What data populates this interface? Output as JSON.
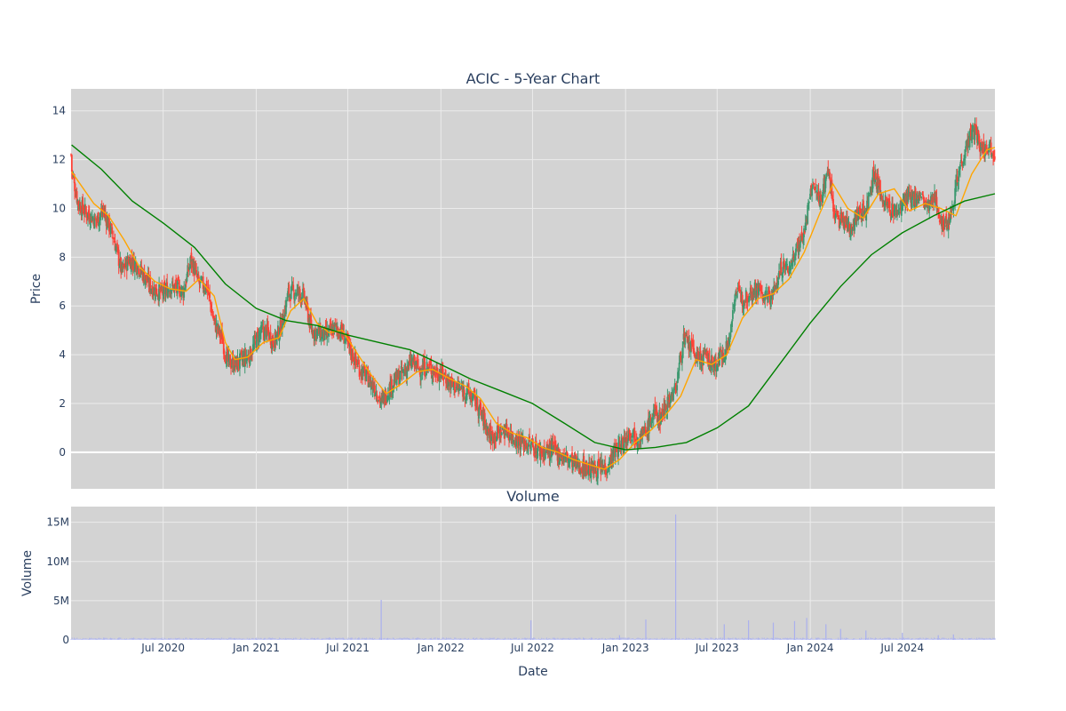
{
  "chart_data": [
    {
      "type": "candlestick",
      "title": "ACIC - 5-Year Chart",
      "ylabel": "Price",
      "ylim": [
        -1.5,
        14.9
      ],
      "yticks": [
        0,
        2,
        4,
        6,
        8,
        10,
        12,
        14
      ],
      "xlim": [
        "2020-01-01",
        "2024-12-31"
      ],
      "grid": true,
      "colors": {
        "up": "#3d9970",
        "down": "#ff4136",
        "ma_short": "#ffa500",
        "ma_long": "#008000",
        "background": "#d3d3d3",
        "grid": "#ebebeb"
      },
      "series": [
        {
          "kind": "close",
          "points": [
            [
              "2020-01-02",
              11.6
            ],
            [
              "2020-01-15",
              10.2
            ],
            [
              "2020-02-01",
              9.8
            ],
            [
              "2020-02-20",
              9.5
            ],
            [
              "2020-03-05",
              9.9
            ],
            [
              "2020-03-25",
              8.8
            ],
            [
              "2020-04-10",
              7.4
            ],
            [
              "2020-04-25",
              7.9
            ],
            [
              "2020-05-10",
              7.7
            ],
            [
              "2020-05-25",
              7.2
            ],
            [
              "2020-06-10",
              6.7
            ],
            [
              "2020-06-30",
              6.5
            ],
            [
              "2020-07-15",
              6.8
            ],
            [
              "2020-07-31",
              6.7
            ],
            [
              "2020-08-10",
              6.6
            ],
            [
              "2020-08-25",
              7.9
            ],
            [
              "2020-09-10",
              6.9
            ],
            [
              "2020-09-25",
              6.8
            ],
            [
              "2020-10-10",
              5.3
            ],
            [
              "2020-10-25",
              4.7
            ],
            [
              "2020-11-05",
              3.7
            ],
            [
              "2020-11-20",
              3.6
            ],
            [
              "2020-12-05",
              3.8
            ],
            [
              "2020-12-20",
              4.0
            ],
            [
              "2021-01-05",
              4.8
            ],
            [
              "2021-01-20",
              5.0
            ],
            [
              "2021-02-05",
              4.5
            ],
            [
              "2021-02-20",
              5.2
            ],
            [
              "2021-03-05",
              6.5
            ],
            [
              "2021-03-20",
              6.6
            ],
            [
              "2021-04-05",
              6.4
            ],
            [
              "2021-04-20",
              5.0
            ],
            [
              "2021-05-05",
              4.9
            ],
            [
              "2021-05-20",
              4.8
            ],
            [
              "2021-06-05",
              5.1
            ],
            [
              "2021-06-20",
              4.9
            ],
            [
              "2021-07-05",
              4.2
            ],
            [
              "2021-07-25",
              3.4
            ],
            [
              "2021-08-10",
              3.0
            ],
            [
              "2021-08-25",
              2.6
            ],
            [
              "2021-09-05",
              2.0
            ],
            [
              "2021-09-20",
              2.6
            ],
            [
              "2021-10-05",
              3.0
            ],
            [
              "2021-10-20",
              3.3
            ],
            [
              "2021-11-05",
              3.7
            ],
            [
              "2021-11-20",
              3.4
            ],
            [
              "2021-12-05",
              3.5
            ],
            [
              "2021-12-20",
              3.3
            ],
            [
              "2022-01-05",
              3.2
            ],
            [
              "2022-01-20",
              2.8
            ],
            [
              "2022-02-05",
              2.6
            ],
            [
              "2022-02-20",
              2.5
            ],
            [
              "2022-03-10",
              2.1
            ],
            [
              "2022-03-25",
              1.4
            ],
            [
              "2022-04-10",
              0.6
            ],
            [
              "2022-04-25",
              0.8
            ],
            [
              "2022-05-10",
              0.9
            ],
            [
              "2022-05-25",
              0.6
            ],
            [
              "2022-06-10",
              0.4
            ],
            [
              "2022-06-25",
              0.3
            ],
            [
              "2022-07-10",
              0.1
            ],
            [
              "2022-07-25",
              0.0
            ],
            [
              "2022-08-10",
              0.1
            ],
            [
              "2022-08-25",
              -0.1
            ],
            [
              "2022-09-10",
              -0.3
            ],
            [
              "2022-09-25",
              -0.5
            ],
            [
              "2022-10-10",
              -0.6
            ],
            [
              "2022-10-25",
              -0.7
            ],
            [
              "2022-11-10",
              -0.7
            ],
            [
              "2022-11-25",
              -0.6
            ],
            [
              "2022-12-10",
              0.0
            ],
            [
              "2022-12-25",
              0.3
            ],
            [
              "2023-01-10",
              0.9
            ],
            [
              "2023-01-25",
              0.6
            ],
            [
              "2023-02-10",
              0.8
            ],
            [
              "2023-02-25",
              1.6
            ],
            [
              "2023-03-10",
              1.4
            ],
            [
              "2023-03-25",
              2.1
            ],
            [
              "2023-04-10",
              2.6
            ],
            [
              "2023-04-25",
              4.6
            ],
            [
              "2023-05-10",
              4.3
            ],
            [
              "2023-05-25",
              3.8
            ],
            [
              "2023-06-10",
              3.9
            ],
            [
              "2023-06-25",
              3.5
            ],
            [
              "2023-07-10",
              4.0
            ],
            [
              "2023-07-25",
              4.5
            ],
            [
              "2023-08-05",
              6.6
            ],
            [
              "2023-08-20",
              6.3
            ],
            [
              "2023-09-05",
              6.6
            ],
            [
              "2023-09-20",
              6.7
            ],
            [
              "2023-10-05",
              6.3
            ],
            [
              "2023-10-20",
              6.5
            ],
            [
              "2023-11-05",
              7.6
            ],
            [
              "2023-11-20",
              7.5
            ],
            [
              "2023-12-05",
              8.4
            ],
            [
              "2023-12-20",
              9.0
            ],
            [
              "2024-01-05",
              11.0
            ],
            [
              "2024-01-20",
              10.3
            ],
            [
              "2024-02-05",
              11.6
            ],
            [
              "2024-02-20",
              9.6
            ],
            [
              "2024-03-05",
              9.5
            ],
            [
              "2024-03-20",
              9.2
            ],
            [
              "2024-04-05",
              9.8
            ],
            [
              "2024-04-20",
              9.9
            ],
            [
              "2024-05-05",
              11.5
            ],
            [
              "2024-05-20",
              10.5
            ],
            [
              "2024-06-05",
              10.0
            ],
            [
              "2024-06-20",
              9.8
            ],
            [
              "2024-07-05",
              10.3
            ],
            [
              "2024-07-20",
              10.4
            ],
            [
              "2024-08-05",
              10.5
            ],
            [
              "2024-08-20",
              10.0
            ],
            [
              "2024-09-05",
              10.4
            ],
            [
              "2024-09-20",
              9.2
            ],
            [
              "2024-10-05",
              9.8
            ],
            [
              "2024-10-20",
              11.5
            ],
            [
              "2024-11-05",
              12.6
            ],
            [
              "2024-11-20",
              13.2
            ],
            [
              "2024-12-05",
              12.4
            ],
            [
              "2024-12-20",
              12.6
            ],
            [
              "2024-12-31",
              12.2
            ]
          ]
        },
        {
          "kind": "ma_short",
          "points": [
            [
              "2020-01-02",
              11.5
            ],
            [
              "2020-02-15",
              10.2
            ],
            [
              "2020-03-15",
              9.7
            ],
            [
              "2020-04-15",
              8.7
            ],
            [
              "2020-05-15",
              7.6
            ],
            [
              "2020-06-15",
              7.0
            ],
            [
              "2020-07-15",
              6.7
            ],
            [
              "2020-08-15",
              6.6
            ],
            [
              "2020-09-10",
              7.1
            ],
            [
              "2020-10-10",
              6.4
            ],
            [
              "2020-11-01",
              4.5
            ],
            [
              "2020-11-20",
              3.8
            ],
            [
              "2020-12-15",
              3.9
            ],
            [
              "2021-01-15",
              4.5
            ],
            [
              "2021-02-15",
              4.7
            ],
            [
              "2021-03-10",
              5.8
            ],
            [
              "2021-04-05",
              6.3
            ],
            [
              "2021-05-01",
              5.3
            ],
            [
              "2021-05-25",
              4.9
            ],
            [
              "2021-06-20",
              5.0
            ],
            [
              "2021-07-15",
              4.2
            ],
            [
              "2021-08-15",
              3.2
            ],
            [
              "2021-09-15",
              2.4
            ],
            [
              "2021-10-15",
              2.8
            ],
            [
              "2021-11-15",
              3.3
            ],
            [
              "2021-12-15",
              3.4
            ],
            [
              "2022-01-20",
              3.0
            ],
            [
              "2022-02-20",
              2.7
            ],
            [
              "2022-03-20",
              2.2
            ],
            [
              "2022-04-20",
              1.2
            ],
            [
              "2022-05-20",
              0.8
            ],
            [
              "2022-06-20",
              0.6
            ],
            [
              "2022-07-20",
              0.2
            ],
            [
              "2022-08-20",
              0.0
            ],
            [
              "2022-09-20",
              -0.3
            ],
            [
              "2022-10-20",
              -0.5
            ],
            [
              "2022-11-20",
              -0.7
            ],
            [
              "2022-12-20",
              -0.3
            ],
            [
              "2023-01-20",
              0.4
            ],
            [
              "2023-02-20",
              0.9
            ],
            [
              "2023-03-20",
              1.5
            ],
            [
              "2023-04-20",
              2.3
            ],
            [
              "2023-05-20",
              3.8
            ],
            [
              "2023-06-20",
              3.6
            ],
            [
              "2023-07-20",
              4.0
            ],
            [
              "2023-08-20",
              5.5
            ],
            [
              "2023-09-20",
              6.3
            ],
            [
              "2023-10-20",
              6.5
            ],
            [
              "2023-11-20",
              7.1
            ],
            [
              "2023-12-20",
              8.2
            ],
            [
              "2024-01-20",
              9.8
            ],
            [
              "2024-02-15",
              11.0
            ],
            [
              "2024-03-15",
              10.0
            ],
            [
              "2024-04-15",
              9.6
            ],
            [
              "2024-05-15",
              10.6
            ],
            [
              "2024-06-15",
              10.8
            ],
            [
              "2024-07-15",
              9.9
            ],
            [
              "2024-08-15",
              10.2
            ],
            [
              "2024-09-15",
              10.0
            ],
            [
              "2024-10-15",
              9.7
            ],
            [
              "2024-11-15",
              11.4
            ],
            [
              "2024-12-15",
              12.4
            ],
            [
              "2024-12-31",
              12.5
            ]
          ]
        },
        {
          "kind": "ma_long",
          "points": [
            [
              "2020-01-02",
              12.6
            ],
            [
              "2020-03-01",
              11.6
            ],
            [
              "2020-05-01",
              10.3
            ],
            [
              "2020-07-01",
              9.4
            ],
            [
              "2020-09-01",
              8.4
            ],
            [
              "2020-11-01",
              6.9
            ],
            [
              "2021-01-01",
              5.9
            ],
            [
              "2021-03-01",
              5.4
            ],
            [
              "2021-05-01",
              5.2
            ],
            [
              "2021-07-01",
              4.8
            ],
            [
              "2021-09-01",
              4.5
            ],
            [
              "2021-11-01",
              4.2
            ],
            [
              "2022-01-01",
              3.6
            ],
            [
              "2022-03-01",
              3.0
            ],
            [
              "2022-05-01",
              2.5
            ],
            [
              "2022-07-01",
              2.0
            ],
            [
              "2022-09-01",
              1.2
            ],
            [
              "2022-11-01",
              0.4
            ],
            [
              "2023-01-01",
              0.1
            ],
            [
              "2023-03-01",
              0.2
            ],
            [
              "2023-05-01",
              0.4
            ],
            [
              "2023-07-01",
              1.0
            ],
            [
              "2023-09-01",
              1.9
            ],
            [
              "2023-11-01",
              3.6
            ],
            [
              "2024-01-01",
              5.3
            ],
            [
              "2024-03-01",
              6.8
            ],
            [
              "2024-05-01",
              8.1
            ],
            [
              "2024-07-01",
              9.0
            ],
            [
              "2024-09-01",
              9.7
            ],
            [
              "2024-11-01",
              10.3
            ],
            [
              "2024-12-31",
              10.6
            ]
          ]
        }
      ]
    },
    {
      "type": "bar",
      "title": "Volume",
      "xlabel": "Date",
      "ylabel": "Volume",
      "ylim": [
        0,
        17000000
      ],
      "yticks": [
        0,
        5000000,
        10000000,
        15000000
      ],
      "ytick_labels": [
        "0",
        "5M",
        "10M",
        "15M"
      ],
      "xticks": [
        "2020-07-01",
        "2021-01-01",
        "2021-07-01",
        "2022-01-01",
        "2022-07-01",
        "2023-01-01",
        "2023-07-01",
        "2024-01-01",
        "2024-07-01"
      ],
      "xtick_labels": [
        "Jul 2020",
        "Jan 2021",
        "Jul 2021",
        "Jan 2022",
        "Jul 2022",
        "Jan 2023",
        "Jul 2023",
        "Jan 2024",
        "Jul 2024"
      ],
      "colors": {
        "bar": "#aab0ee"
      },
      "spikes": [
        [
          "2021-09-05",
          5100000
        ],
        [
          "2022-06-28",
          2500000
        ],
        [
          "2022-12-20",
          600000
        ],
        [
          "2023-02-10",
          2600000
        ],
        [
          "2023-04-10",
          16000000
        ],
        [
          "2023-07-15",
          2000000
        ],
        [
          "2023-09-01",
          2500000
        ],
        [
          "2023-10-20",
          2200000
        ],
        [
          "2023-12-01",
          2400000
        ],
        [
          "2023-12-25",
          2800000
        ],
        [
          "2024-02-01",
          2000000
        ],
        [
          "2024-03-01",
          1400000
        ],
        [
          "2024-04-20",
          1200000
        ],
        [
          "2024-07-01",
          900000
        ],
        [
          "2024-09-10",
          600000
        ],
        [
          "2024-10-10",
          700000
        ]
      ],
      "baseline_volume": 200000
    }
  ]
}
